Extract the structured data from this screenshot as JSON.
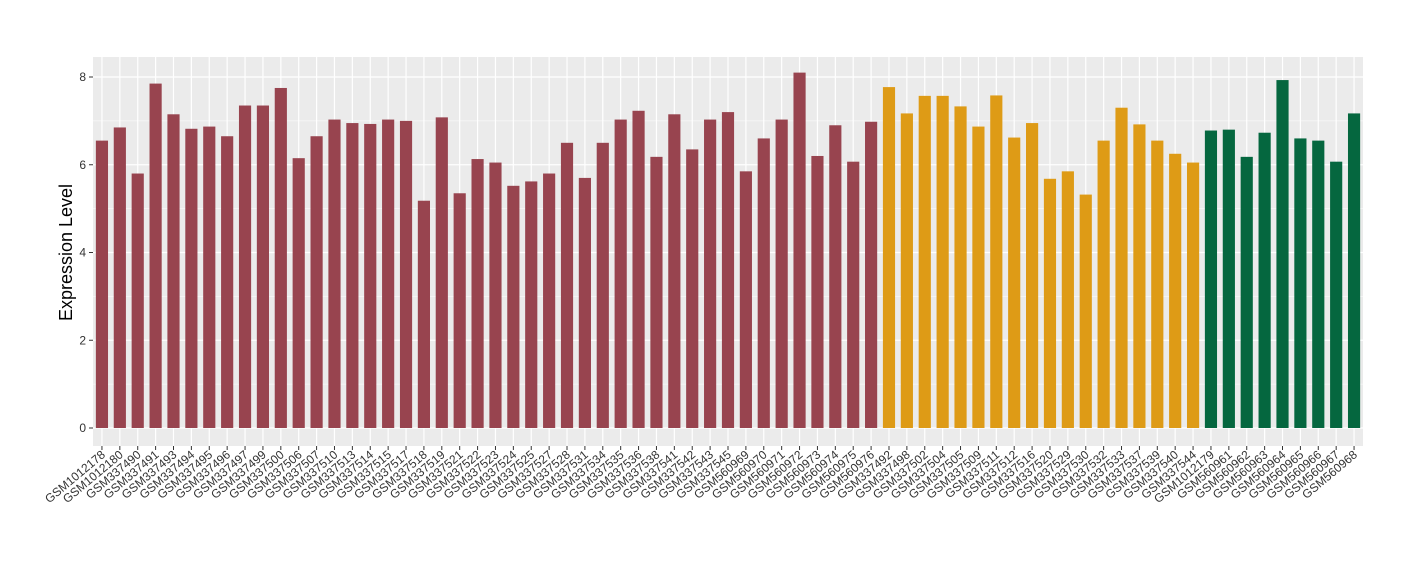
{
  "chart_data": {
    "type": "bar",
    "title": "",
    "xlabel": "",
    "ylabel": "Expression Level",
    "ylim": [
      0,
      8.35
    ],
    "yticks": [
      0,
      2,
      4,
      6,
      8
    ],
    "grid": true,
    "legend": "none",
    "colors": {
      "panel_bg": "#EBEBEB",
      "grid": "#FFFFFF",
      "group1": "#98444F",
      "group2": "#DE9B16",
      "group3": "#05673F"
    },
    "categories": [
      "GSM1012178",
      "GSM1012180",
      "GSM337490",
      "GSM337491",
      "GSM337493",
      "GSM337494",
      "GSM337495",
      "GSM337496",
      "GSM337497",
      "GSM337499",
      "GSM337500",
      "GSM337506",
      "GSM337507",
      "GSM337510",
      "GSM337513",
      "GSM337514",
      "GSM337515",
      "GSM337517",
      "GSM337518",
      "GSM337519",
      "GSM337521",
      "GSM337522",
      "GSM337523",
      "GSM337524",
      "GSM337525",
      "GSM337527",
      "GSM337528",
      "GSM337531",
      "GSM337534",
      "GSM337535",
      "GSM337536",
      "GSM337538",
      "GSM337541",
      "GSM337542",
      "GSM337543",
      "GSM337545",
      "GSM560969",
      "GSM560970",
      "GSM560971",
      "GSM560972",
      "GSM560973",
      "GSM560974",
      "GSM560975",
      "GSM560976",
      "GSM337492",
      "GSM337498",
      "GSM337502",
      "GSM337504",
      "GSM337505",
      "GSM337509",
      "GSM337511",
      "GSM337512",
      "GSM337516",
      "GSM337520",
      "GSM337529",
      "GSM337530",
      "GSM337532",
      "GSM337533",
      "GSM337537",
      "GSM337539",
      "GSM337540",
      "GSM337544",
      "GSM1012179",
      "GSM560961",
      "GSM560962",
      "GSM560963",
      "GSM560964",
      "GSM560965",
      "GSM560966",
      "GSM560967",
      "GSM560968"
    ],
    "values": [
      6.55,
      6.85,
      5.8,
      7.85,
      7.15,
      6.82,
      6.87,
      6.65,
      7.35,
      7.35,
      7.75,
      6.15,
      6.65,
      7.03,
      6.95,
      6.93,
      7.03,
      7.0,
      5.18,
      7.08,
      5.35,
      6.13,
      6.05,
      5.52,
      5.62,
      5.8,
      6.5,
      5.7,
      6.5,
      7.03,
      7.23,
      6.18,
      7.15,
      6.35,
      7.03,
      7.2,
      5.85,
      6.6,
      7.03,
      8.1,
      6.2,
      6.9,
      6.07,
      6.98,
      7.77,
      7.17,
      7.57,
      7.57,
      7.33,
      6.87,
      7.58,
      6.62,
      6.95,
      5.68,
      5.85,
      5.32,
      6.55,
      7.3,
      6.92,
      6.55,
      6.25,
      6.05,
      6.78,
      6.8,
      6.18,
      6.73,
      7.93,
      6.6,
      6.55,
      6.07,
      7.17
    ],
    "groups": [
      1,
      1,
      1,
      1,
      1,
      1,
      1,
      1,
      1,
      1,
      1,
      1,
      1,
      1,
      1,
      1,
      1,
      1,
      1,
      1,
      1,
      1,
      1,
      1,
      1,
      1,
      1,
      1,
      1,
      1,
      1,
      1,
      1,
      1,
      1,
      1,
      1,
      1,
      1,
      1,
      1,
      1,
      1,
      1,
      2,
      2,
      2,
      2,
      2,
      2,
      2,
      2,
      2,
      2,
      2,
      2,
      2,
      2,
      2,
      2,
      2,
      2,
      3,
      3,
      3,
      3,
      3,
      3,
      3,
      3,
      3
    ]
  }
}
